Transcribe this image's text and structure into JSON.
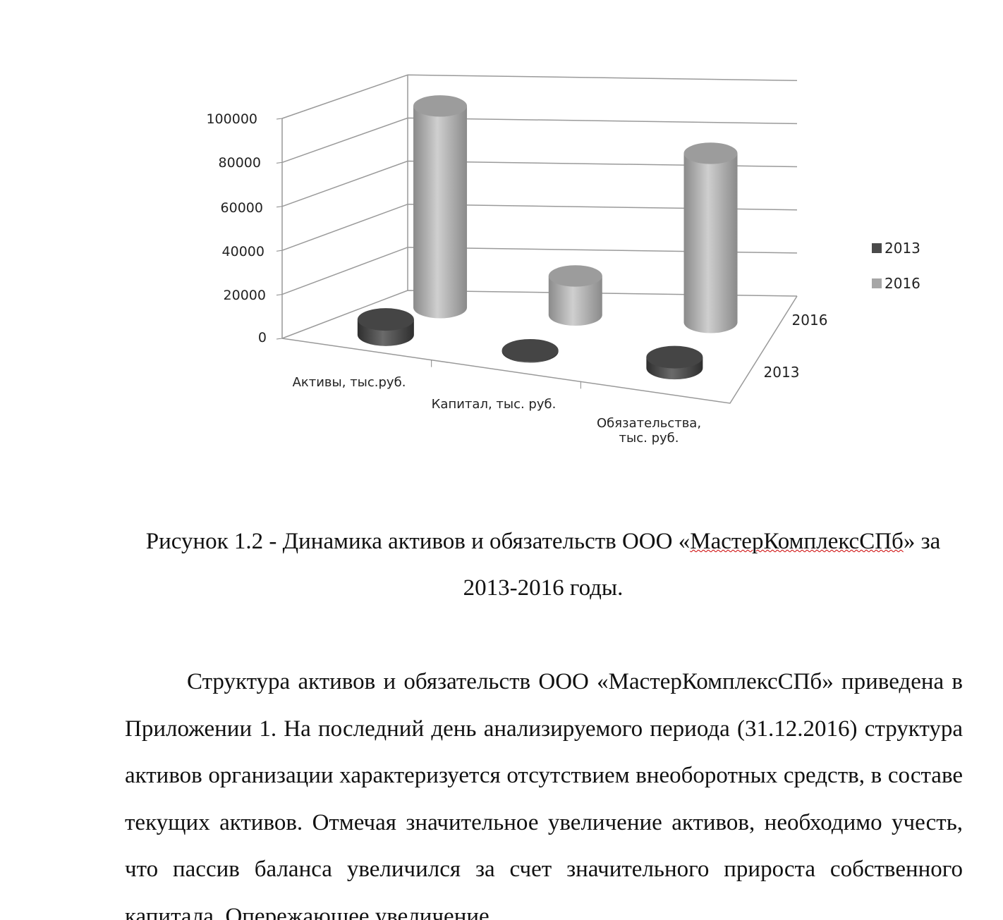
{
  "chart_data": {
    "type": "bar",
    "style": "3d-cylinder",
    "categories": [
      "Активы, тыс.руб.",
      "Капитал, тыс. руб.",
      "Обязательства, тыс. руб."
    ],
    "category_lines": [
      [
        "Активы, тыс.руб."
      ],
      [
        "Капитал, тыс. руб."
      ],
      [
        "Обязательства,",
        "тыс. руб."
      ]
    ],
    "series": [
      {
        "name": "2013",
        "values": [
          7000,
          500,
          5000
        ],
        "color": "#4a4a4a"
      },
      {
        "name": "2016",
        "values": [
          93000,
          18000,
          78000
        ],
        "color": "#a6a6a6"
      }
    ],
    "depth_labels": [
      "2016",
      "2013"
    ],
    "yticks": [
      "0",
      "20000",
      "40000",
      "60000",
      "80000",
      "100000"
    ],
    "ylim": [
      0,
      100000
    ],
    "grid": true,
    "legend": "right"
  },
  "caption": {
    "line1_pre": "Рисунок 1.2 - Динамика активов и обязательств ООО «",
    "line1_name": "МастерКомплексСПб",
    "line1_post": "» за",
    "line2": "2013-2016 годы."
  },
  "body": {
    "paragraph": "Структура активов и обязательств ООО «МастерКомплексСПб» приведена в Приложении 1. На последний день анализируемого периода (31.12.2016) структура активов организации характеризуется отсутствием внеоборотных средств, в составе текущих активов. Отмечая значительное увеличение активов, необходимо учесть, что пассив баланса увеличился за счет значительного прироста собственного капитала. Опережающее увеличение"
  }
}
